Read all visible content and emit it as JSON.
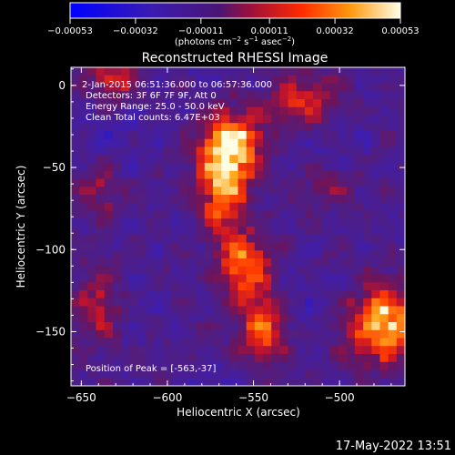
{
  "chart_data": {
    "type": "heatmap",
    "title": "Reconstructed RHESSI Image",
    "xlabel": "Heliocentric X (arcsec)",
    "ylabel": "Heliocentric Y (arcsec)",
    "xlim": [
      -656,
      -462
    ],
    "ylim": [
      -183,
      11
    ],
    "x_ticks": [
      -650,
      -600,
      -550,
      -500
    ],
    "x_tick_labels": [
      "−650",
      "−600",
      "−550",
      "−500"
    ],
    "y_ticks": [
      0,
      -50,
      -100,
      -150
    ],
    "y_tick_labels": [
      "0",
      "−50",
      "−100",
      "−150"
    ],
    "colorbar": {
      "range": [
        -0.00053,
        0.00053
      ],
      "ticks": [
        -0.00053,
        -0.00032,
        -0.00011,
        0.00011,
        0.00032,
        0.00053
      ],
      "tick_labels": [
        "−0.00053",
        "−0.00032",
        "−0.00011",
        "0.00011",
        "0.00032",
        "0.00053"
      ],
      "label_main": "(photons cm",
      "label_exp1": "−2",
      "label_mid": " s",
      "label_exp2": "−1",
      "label_tail": " asec",
      "label_exp3": "−2",
      "label_close": ")"
    },
    "sources": [
      {
        "x": -563,
        "y": -37,
        "sx": 12,
        "sy": 14,
        "amp": 1.0
      },
      {
        "x": -568,
        "y": -70,
        "sx": 10,
        "sy": 18,
        "amp": 0.72
      },
      {
        "x": -555,
        "y": -110,
        "sx": 10,
        "sy": 14,
        "amp": 0.7
      },
      {
        "x": -545,
        "y": -150,
        "sx": 9,
        "sy": 14,
        "amp": 0.62
      },
      {
        "x": -475,
        "y": -145,
        "sx": 16,
        "sy": 16,
        "amp": 0.85
      },
      {
        "x": -520,
        "y": -10,
        "sx": 14,
        "sy": 12,
        "amp": 0.5
      },
      {
        "x": -640,
        "y": -135,
        "sx": 10,
        "sy": 16,
        "amp": 0.45
      },
      {
        "x": -640,
        "y": -65,
        "sx": 9,
        "sy": 12,
        "amp": 0.3
      },
      {
        "x": -632,
        "y": 5,
        "sx": 10,
        "sy": 10,
        "amp": 0.45
      },
      {
        "x": -505,
        "y": -60,
        "sx": 10,
        "sy": 10,
        "amp": 0.25
      }
    ],
    "annotations": {
      "time": "2-Jan-2015 06:51:36.000 to 06:57:36.000",
      "detectors": "Detectors: 3F 6F 7F 9F, Att 0",
      "energy": "Energy Range: 25.0 - 50.0 keV",
      "clean": "Clean    Total counts: 6.47E+03",
      "peak": "Position of Peak = [-563,-37]"
    },
    "footer_date": "17-May-2022 13:51"
  }
}
